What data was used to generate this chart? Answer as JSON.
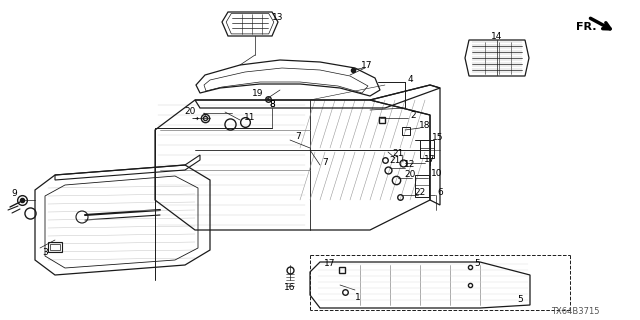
{
  "bg_color": "#ffffff",
  "part_number": "TX64B3715",
  "line_color": "#1a1a1a",
  "gray_color": "#888888"
}
